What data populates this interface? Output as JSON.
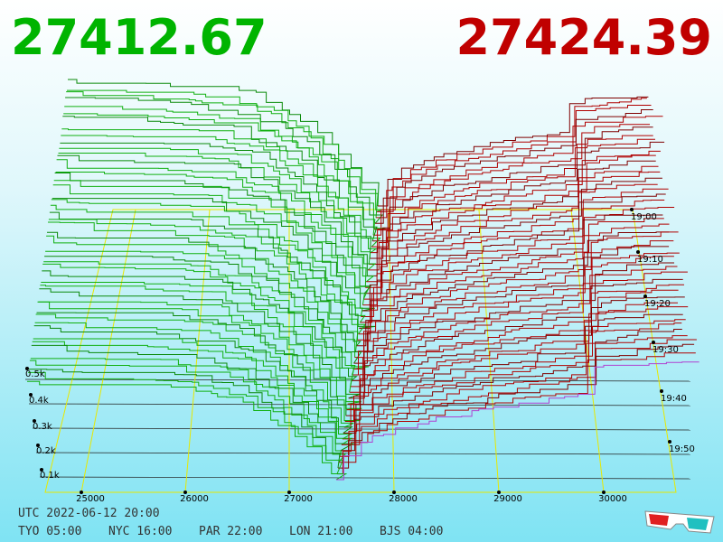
{
  "header": {
    "bid": "27412.67",
    "ask": "27424.39"
  },
  "price_axis": {
    "labels": [
      "25000",
      "26000",
      "27000",
      "28000",
      "29000",
      "30000"
    ]
  },
  "depth_axis": {
    "labels": [
      "0.1k",
      "0.2k",
      "0.3k",
      "0.4k",
      "0.5k"
    ]
  },
  "time_axis": {
    "labels": [
      "19:00",
      "19:10",
      "19:20",
      "19:30",
      "19:40",
      "19:50"
    ]
  },
  "footer": {
    "utc": "UTC 2022-06-12 20:00",
    "zones": [
      "TYO 05:00",
      "NYC 16:00",
      "PAR 22:00",
      "LON 21:00",
      "BJS 04:00"
    ]
  }
}
